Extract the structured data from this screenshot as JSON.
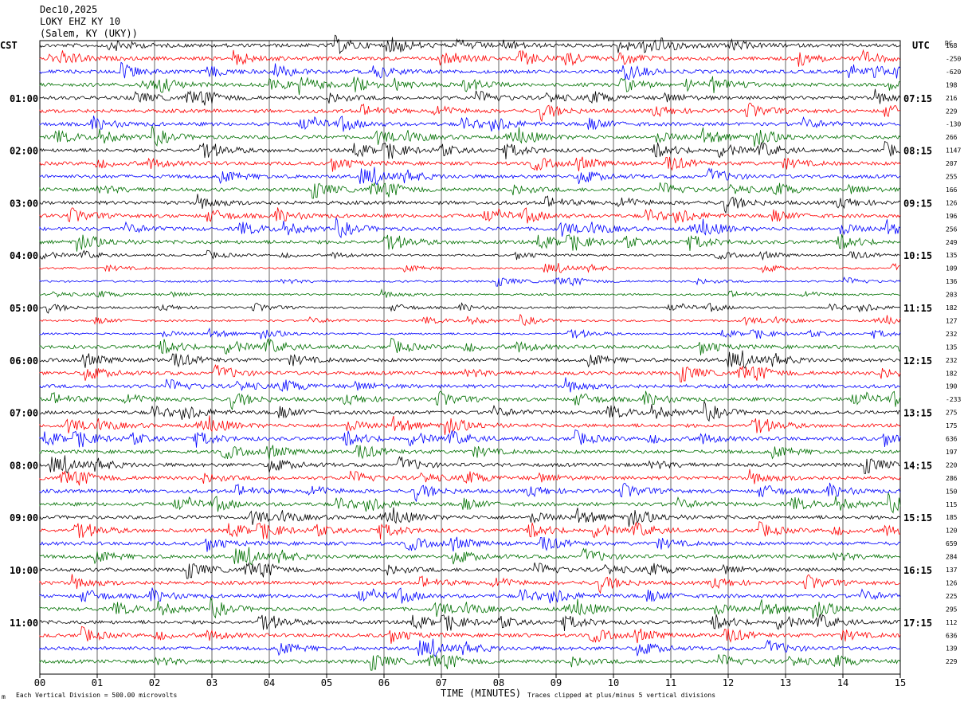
{
  "header": {
    "date": "Dec10,2025",
    "station": "LOKY EHZ KY 10",
    "location": "(Salem, KY (UKY))"
  },
  "left_tz": "CST",
  "right_tz": "UTC",
  "dc_label": "DC",
  "footer": {
    "scale_note": "Each Vertical Division =  500.00 microvolts",
    "clip_note": "Traces clipped at plus/minus 5 vertical divisions",
    "mark": "m"
  },
  "chart_data": {
    "type": "line",
    "title": "",
    "xlabel": "TIME (MINUTES)",
    "ylabel": "",
    "x_ticks": [
      "00",
      "01",
      "02",
      "03",
      "04",
      "05",
      "06",
      "07",
      "08",
      "09",
      "10",
      "11",
      "12",
      "13",
      "14",
      "15"
    ],
    "xlim": [
      0,
      15
    ],
    "grid": true,
    "trace_count": 48,
    "trace_colors": [
      "#000000",
      "#ff0000",
      "#0000ff",
      "#007000"
    ],
    "left_hour_labels": [
      "01:00",
      "02:00",
      "03:00",
      "04:00",
      "05:00",
      "06:00",
      "07:00",
      "08:00",
      "09:00",
      "10:00",
      "11:00"
    ],
    "right_hour_labels": [
      "07:15",
      "08:15",
      "09:15",
      "10:15",
      "11:15",
      "12:15",
      "13:15",
      "14:15",
      "15:15",
      "16:15",
      "17:15"
    ],
    "dc_offsets": [
      "168",
      "-250",
      "-620",
      "198",
      "216",
      "229",
      "-130",
      "266",
      "1147",
      "207",
      "255",
      "166",
      "126",
      "196",
      "256",
      "249",
      "135",
      "109",
      "136",
      "203",
      "182",
      "127",
      "232",
      "135",
      "232",
      "182",
      "190",
      "-233",
      "275",
      "175",
      "636",
      "197",
      "220",
      "286",
      "150",
      "115",
      "185",
      "120",
      "659",
      "284",
      "137",
      "126",
      "225",
      "295",
      "112",
      "636",
      "139",
      "229"
    ]
  }
}
